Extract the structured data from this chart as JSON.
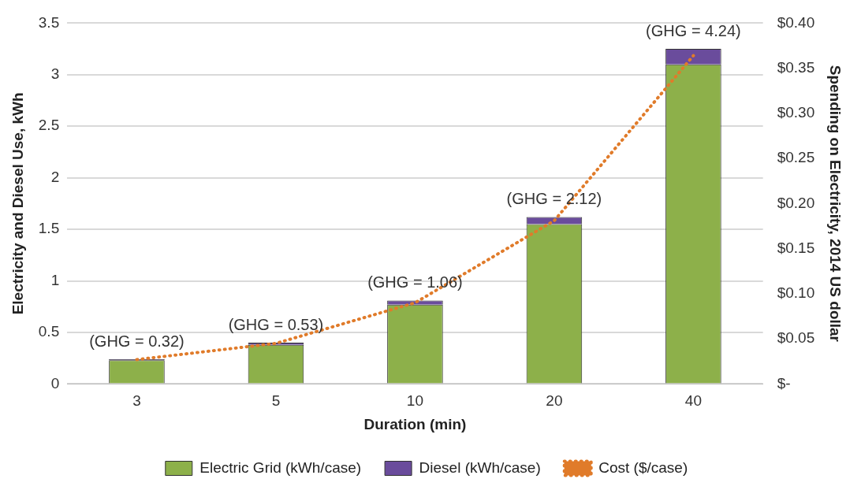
{
  "chart_data": {
    "type": "bar",
    "stacked": true,
    "xlabel": "Duration (min)",
    "ylabel": "Electricity and Diesel Use, kWh",
    "y2label": "Spending on Electricity, 2014 US dollar",
    "categories": [
      "3",
      "5",
      "10",
      "20",
      "40"
    ],
    "series": [
      {
        "name": "Electric Grid (kWh/case)",
        "color": "#8db04a",
        "values": [
          0.23,
          0.38,
          0.77,
          1.55,
          3.1
        ]
      },
      {
        "name": "Diesel (kWh/case)",
        "color": "#6a4c9c",
        "values": [
          0.01,
          0.02,
          0.04,
          0.07,
          0.15
        ]
      },
      {
        "name": "Cost ($/case)",
        "type": "line",
        "axis": "y2",
        "color": "#e07b2a",
        "line_style": "dotted",
        "marker": "none",
        "values": [
          0.027,
          0.045,
          0.09,
          0.181,
          0.364
        ]
      }
    ],
    "ylim": [
      0,
      3.5
    ],
    "yticks": [
      0,
      0.5,
      1,
      1.5,
      2,
      2.5,
      3,
      3.5
    ],
    "y2lim": [
      0,
      0.4
    ],
    "y2ticks": [
      {
        "value": 0,
        "label": "$-"
      },
      {
        "value": 0.05,
        "label": "$0.05"
      },
      {
        "value": 0.1,
        "label": "$0.10"
      },
      {
        "value": 0.15,
        "label": "$0.15"
      },
      {
        "value": 0.2,
        "label": "$0.20"
      },
      {
        "value": 0.25,
        "label": "$0.25"
      },
      {
        "value": 0.3,
        "label": "$0.30"
      },
      {
        "value": 0.35,
        "label": "$0.35"
      },
      {
        "value": 0.4,
        "label": "$0.40"
      }
    ],
    "grid": "y",
    "legend": "bottom",
    "annotations": [
      {
        "text": "(GHG = 0.32)",
        "x": "3",
        "y": 0.24
      },
      {
        "text": "(GHG = 0.53)",
        "x": "5",
        "y": 0.4
      },
      {
        "text": "(GHG = 1.06)",
        "x": "10",
        "y": 0.81
      },
      {
        "text": "(GHG = 2.12)",
        "x": "20",
        "y": 1.62
      },
      {
        "text": "(GHG = 4.24)",
        "x": "40",
        "y": 3.25
      }
    ]
  }
}
